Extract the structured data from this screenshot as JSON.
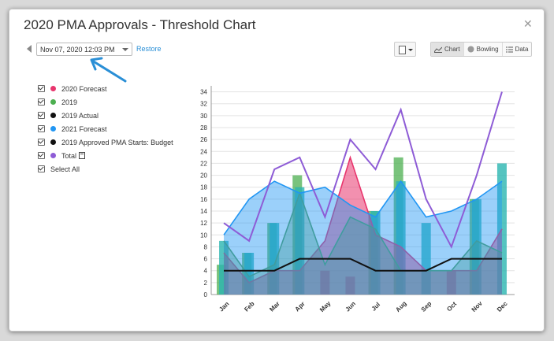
{
  "dialog": {
    "title": "2020 PMA Approvals - Threshold Chart",
    "close_icon": "close-icon"
  },
  "toolbar": {
    "date_value": "Nov 07, 2020 12:03 PM",
    "restore_label": "Restore",
    "views": [
      {
        "label": "Chart",
        "icon": "line-chart-icon",
        "active": true
      },
      {
        "label": "Bowling",
        "icon": "bowling-ball-icon",
        "active": false
      },
      {
        "label": "Data",
        "icon": "list-icon",
        "active": false
      }
    ]
  },
  "legend": {
    "items": [
      {
        "label": "2020 Forecast",
        "color": "#e8356d"
      },
      {
        "label": "2019",
        "color": "#4caf50"
      },
      {
        "label": "2019 Actual",
        "color": "#111111"
      },
      {
        "label": "2021 Forecast",
        "color": "#2196f3"
      },
      {
        "label": "2019 Approved PMA Starts: Budget",
        "color": "#111111"
      },
      {
        "label": "Total",
        "color": "#8e5cd6"
      }
    ],
    "select_all_label": "Select All"
  },
  "chart_data": {
    "type": "bar",
    "categories": [
      "Jan",
      "Feb",
      "Mar",
      "Apr",
      "May",
      "Jun",
      "Jul",
      "Aug",
      "Sep",
      "Oct",
      "Nov",
      "Dec"
    ],
    "ylim": [
      0,
      35
    ],
    "yticks": [
      0,
      2,
      4,
      6,
      8,
      10,
      12,
      14,
      16,
      18,
      20,
      22,
      24,
      26,
      28,
      30,
      32,
      34
    ],
    "grid": true,
    "series": [
      {
        "name": "2019",
        "type": "bar",
        "color": "#4caf50",
        "values": [
          5,
          7,
          12,
          20,
          0,
          0,
          14,
          23,
          0,
          0,
          16,
          0
        ]
      },
      {
        "name": "2020 Forecast",
        "type": "bar",
        "color": "#e8356d",
        "values": [
          0,
          0,
          0,
          0,
          4,
          3,
          0,
          0,
          0,
          4,
          0,
          0
        ]
      },
      {
        "name": "2021 Forecast",
        "type": "bar",
        "color": "#2bb5b0",
        "values": [
          9,
          7,
          12,
          18,
          0,
          0,
          14,
          19,
          12,
          0,
          16,
          22
        ]
      },
      {
        "name": "2020 Forecast",
        "type": "area",
        "color": "#e8356d",
        "values": [
          7,
          2,
          4,
          4,
          9,
          23,
          10,
          8,
          4,
          4,
          4,
          11
        ]
      },
      {
        "name": "2019",
        "type": "area",
        "color": "#5aa05a",
        "values": [
          9,
          3,
          5,
          17,
          5,
          13,
          11,
          4,
          4,
          4,
          9,
          7
        ]
      },
      {
        "name": "2021 Forecast",
        "type": "area",
        "color": "#2196f3",
        "values": [
          10,
          16,
          19,
          17,
          18,
          15,
          13,
          19,
          13,
          14,
          16,
          19
        ]
      },
      {
        "name": "Total",
        "type": "line",
        "color": "#8e5cd6",
        "values": [
          12,
          9,
          21,
          23,
          13,
          26,
          21,
          31,
          16,
          8,
          20,
          34
        ]
      },
      {
        "name": "2019 Approved PMA Starts: Budget",
        "type": "line",
        "color": "#111111",
        "values": [
          4,
          4,
          4,
          6,
          6,
          6,
          4,
          4,
          4,
          6,
          6,
          6
        ]
      }
    ]
  }
}
